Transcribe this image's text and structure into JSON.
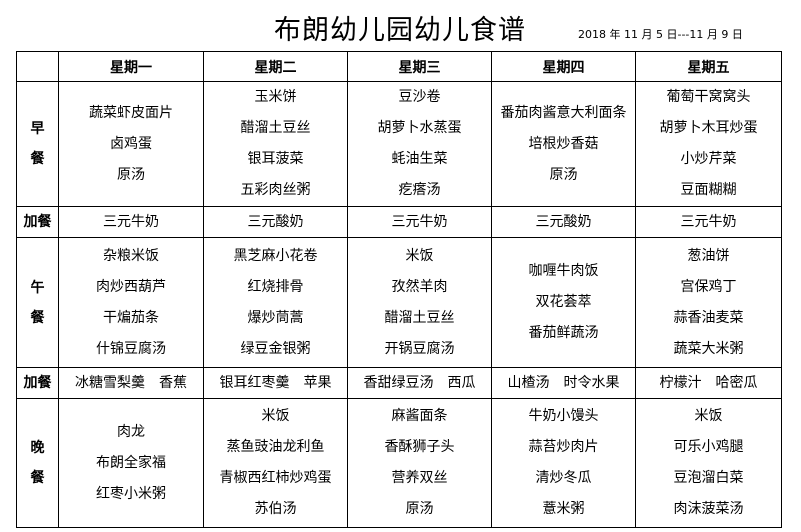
{
  "title": "布朗幼儿园幼儿食谱",
  "date_range": "2018 年 11 月 5 日---11 月 9 日",
  "days": [
    "星期一",
    "星期二",
    "星期三",
    "星期四",
    "星期五"
  ],
  "rows": [
    {
      "label": [
        "早",
        "餐"
      ],
      "cells": [
        [
          "蔬菜虾皮面片",
          "卤鸡蛋",
          "原汤"
        ],
        [
          "玉米饼",
          "醋溜土豆丝",
          "银耳菠菜",
          "五彩肉丝粥"
        ],
        [
          "豆沙卷",
          "胡萝卜水蒸蛋",
          "蚝油生菜",
          "疙瘩汤"
        ],
        [
          "番茄肉酱意大利面条",
          "培根炒香菇",
          "原汤"
        ],
        [
          "葡萄干窝窝头",
          "胡萝卜木耳炒蛋",
          "小炒芹菜",
          "豆面糊糊"
        ]
      ]
    },
    {
      "label": [
        "加餐"
      ],
      "cells": [
        [
          "三元牛奶"
        ],
        [
          "三元酸奶"
        ],
        [
          "三元牛奶"
        ],
        [
          "三元酸奶"
        ],
        [
          "三元牛奶"
        ]
      ]
    },
    {
      "label": [
        "午",
        "餐"
      ],
      "cells": [
        [
          "杂粮米饭",
          "肉炒西葫芦",
          "干煸茄条",
          "什锦豆腐汤"
        ],
        [
          "黑芝麻小花卷",
          "红烧排骨",
          "爆炒茼蒿",
          "绿豆金银粥"
        ],
        [
          "米饭",
          "孜然羊肉",
          "醋溜土豆丝",
          "开锅豆腐汤"
        ],
        [
          "咖喱牛肉饭",
          "双花荟萃",
          "番茄鲜蔬汤"
        ],
        [
          "葱油饼",
          "宫保鸡丁",
          "蒜香油麦菜",
          "蔬菜大米粥"
        ]
      ]
    },
    {
      "label": [
        "加餐"
      ],
      "cells": [
        [
          "冰糖雪梨羹　香蕉"
        ],
        [
          "银耳红枣羹　苹果"
        ],
        [
          "香甜绿豆汤　西瓜"
        ],
        [
          "山楂汤　时令水果"
        ],
        [
          "柠檬汁　哈密瓜"
        ]
      ]
    },
    {
      "label": [
        "晚",
        "餐"
      ],
      "cells": [
        [
          "肉龙",
          "布朗全家福",
          "红枣小米粥"
        ],
        [
          "米饭",
          "蒸鱼豉油龙利鱼",
          "青椒西红柿炒鸡蛋",
          "苏伯汤"
        ],
        [
          "麻酱面条",
          "香酥狮子头",
          "营养双丝",
          "原汤"
        ],
        [
          "牛奶小馒头",
          "蒜苔炒肉片",
          "清炒冬瓜",
          "薏米粥"
        ],
        [
          "米饭",
          "可乐小鸡腿",
          "豆泡溜白菜",
          "肉沫菠菜汤"
        ]
      ]
    }
  ]
}
